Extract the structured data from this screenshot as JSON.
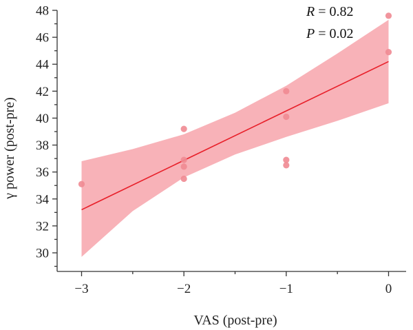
{
  "chart_data": {
    "type": "scatter",
    "title": "",
    "xlabel": "VAS (post-pre)",
    "ylabel": "γ power (post-pre)",
    "xlim": [
      -3.2,
      0.1
    ],
    "ylim": [
      28.8,
      48
    ],
    "x_ticks": [
      -3,
      -2,
      -1,
      0
    ],
    "x_tick_labels": [
      "−3",
      "−2",
      "−1",
      "0"
    ],
    "y_ticks": [
      30,
      32,
      34,
      36,
      38,
      40,
      42,
      44,
      46,
      48
    ],
    "y_tick_labels": [
      "30",
      "32",
      "34",
      "36",
      "38",
      "40",
      "42",
      "44",
      "46",
      "48"
    ],
    "grid": false,
    "points": [
      {
        "x": -3,
        "y": 35.1
      },
      {
        "x": -2,
        "y": 39.2
      },
      {
        "x": -2,
        "y": 36.9
      },
      {
        "x": -2,
        "y": 36.4
      },
      {
        "x": -2,
        "y": 35.5
      },
      {
        "x": -1,
        "y": 42.0
      },
      {
        "x": -1,
        "y": 40.1
      },
      {
        "x": -1,
        "y": 36.9
      },
      {
        "x": -1,
        "y": 36.5
      },
      {
        "x": 0,
        "y": 47.6
      },
      {
        "x": 0,
        "y": 44.9
      }
    ],
    "fit_line": {
      "x": [
        -3,
        0
      ],
      "y": [
        33.2,
        44.2
      ]
    },
    "confidence_band": {
      "x": [
        -3,
        -2.5,
        -2,
        -1.5,
        -1,
        -0.5,
        0
      ],
      "upper": [
        36.8,
        37.7,
        38.8,
        40.4,
        42.4,
        44.8,
        47.3
      ],
      "lower": [
        29.7,
        33.1,
        35.6,
        37.3,
        38.6,
        39.8,
        41.1
      ]
    },
    "annotations": {
      "r_label": "R",
      "r_value": " = 0.82",
      "p_label": "P",
      "p_value": " = 0.02"
    },
    "colors": {
      "points": "#f08a92",
      "band": "#f7aab0",
      "line": "#e8202a",
      "axis": "#333333"
    }
  }
}
